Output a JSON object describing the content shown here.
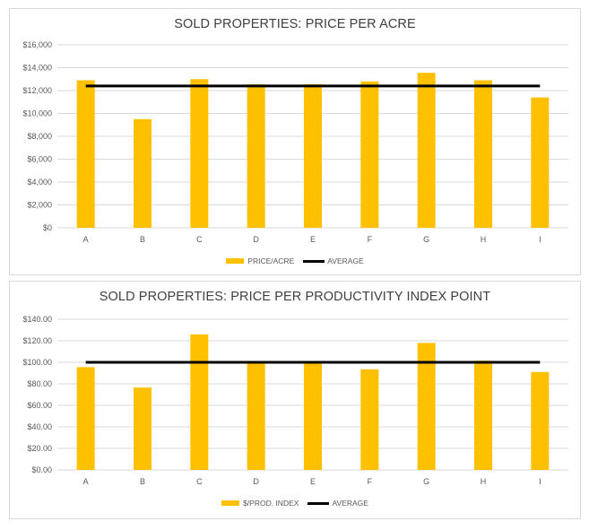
{
  "chart_data": [
    {
      "type": "bar",
      "title": "SOLD PROPERTIES: PRICE PER ACRE",
      "categories": [
        "A",
        "B",
        "C",
        "D",
        "E",
        "F",
        "G",
        "H",
        "I"
      ],
      "series": [
        {
          "name": "PRICE/ACRE",
          "type": "bar",
          "color": "#ffc000",
          "values": [
            12900,
            9500,
            13000,
            12550,
            12550,
            12800,
            13550,
            12900,
            11400
          ]
        },
        {
          "name": "AVERAGE",
          "type": "line",
          "color": "#000000",
          "values": [
            12400,
            12400,
            12400,
            12400,
            12400,
            12400,
            12400,
            12400,
            12400
          ]
        }
      ],
      "ylim": [
        0,
        16000
      ],
      "ytick_values": [
        0,
        2000,
        4000,
        6000,
        8000,
        10000,
        12000,
        14000,
        16000
      ],
      "ytick_labels": [
        "$0",
        "$2,000",
        "$4,000",
        "$6,000",
        "$8,000",
        "$10,000",
        "$12,000",
        "$14,000",
        "$16,000"
      ],
      "xlabel": "",
      "ylabel": "",
      "grid": true,
      "legend": "bottom"
    },
    {
      "type": "bar",
      "title": "SOLD PROPERTIES: PRICE PER PRODUCTIVITY INDEX  POINT",
      "categories": [
        "A",
        "B",
        "C",
        "D",
        "E",
        "F",
        "G",
        "H",
        "I"
      ],
      "series": [
        {
          "name": "$/PROD. INDEX",
          "type": "bar",
          "color": "#ffc000",
          "values": [
            95.5,
            76.5,
            126,
            100,
            99.5,
            93.5,
            118,
            101.5,
            91
          ]
        },
        {
          "name": "AVERAGE",
          "type": "line",
          "color": "#000000",
          "values": [
            100,
            100,
            100,
            100,
            100,
            100,
            100,
            100,
            100
          ]
        }
      ],
      "ylim": [
        0,
        140
      ],
      "ytick_values": [
        0,
        20,
        40,
        60,
        80,
        100,
        120,
        140
      ],
      "ytick_labels": [
        "$0.00",
        "$20.00",
        "$40.00",
        "$60.00",
        "$80.00",
        "$100.00",
        "$120.00",
        "$140.00"
      ],
      "xlabel": "",
      "ylabel": "",
      "grid": true,
      "legend": "bottom"
    }
  ]
}
